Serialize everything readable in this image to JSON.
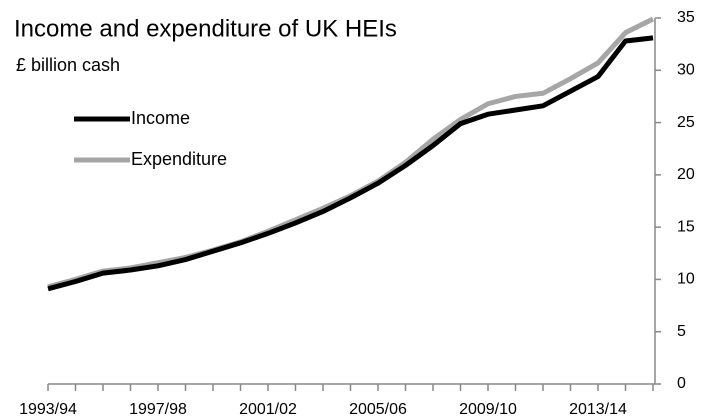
{
  "chart_data": {
    "type": "line",
    "title": "Income and expenditure of UK HEIs",
    "subtitle": "£ billion cash",
    "categories": [
      "1993/94",
      null,
      null,
      null,
      "1997/98",
      null,
      null,
      null,
      "2001/02",
      null,
      null,
      null,
      "2005/06",
      null,
      null,
      null,
      "2009/10",
      null,
      null,
      null,
      "2013/14",
      null,
      null
    ],
    "series": [
      {
        "name": "Income",
        "color": "#000000",
        "values": [
          9.1,
          9.8,
          10.6,
          10.9,
          11.3,
          11.9,
          12.7,
          13.5,
          14.4,
          15.4,
          16.5,
          17.8,
          19.2,
          20.9,
          22.8,
          24.9,
          25.8,
          26.2,
          26.6,
          28.0,
          29.4,
          32.8,
          33.1
        ]
      },
      {
        "name": "Expenditure",
        "color": "#a6a6a6",
        "values": [
          9.3,
          10.0,
          10.8,
          11.1,
          11.6,
          12.1,
          12.8,
          13.6,
          14.6,
          15.7,
          16.8,
          18.0,
          19.4,
          21.2,
          23.4,
          25.3,
          26.8,
          27.5,
          27.8,
          29.2,
          30.7,
          33.6,
          34.9
        ]
      }
    ],
    "ylim": [
      0,
      35
    ],
    "yticks": [
      0,
      5,
      10,
      15,
      20,
      25,
      30,
      35
    ],
    "y_axis_side": "right",
    "legend": "upper left",
    "grid": false
  }
}
